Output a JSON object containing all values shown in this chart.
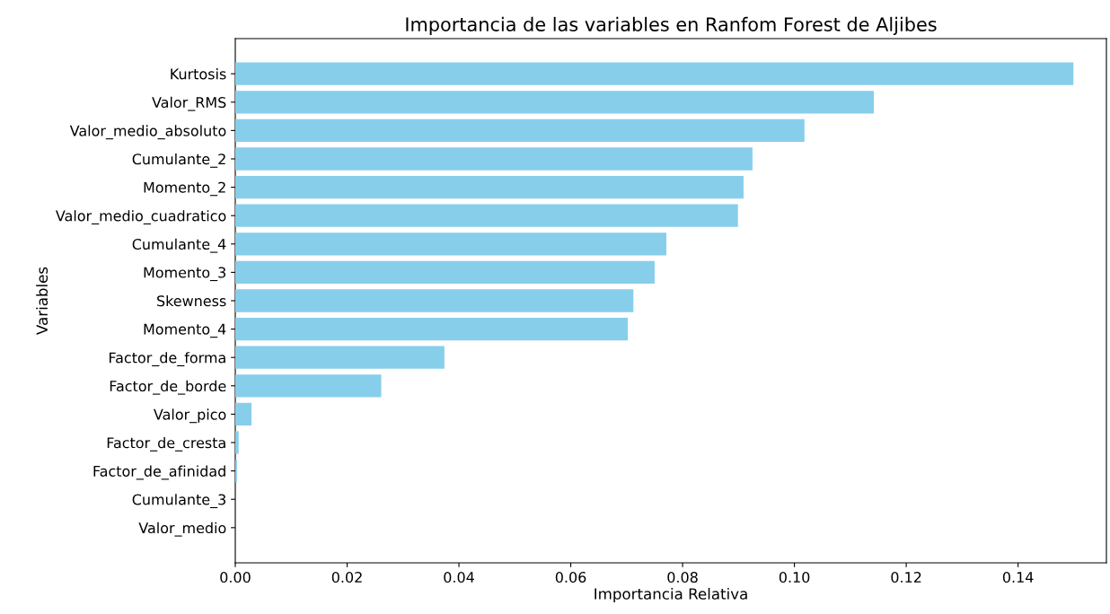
{
  "chart_data": {
    "type": "bar",
    "orientation": "horizontal",
    "title": "Importancia de las variables en Ranfom Forest de Aljibes",
    "xlabel": "Importancia Relativa",
    "ylabel": "Variables",
    "categories": [
      "Kurtosis",
      "Valor_RMS",
      "Valor_medio_absoluto",
      "Cumulante_2",
      "Momento_2",
      "Valor_medio_cuadratico",
      "Cumulante_4",
      "Momento_3",
      "Skewness",
      "Momento_4",
      "Factor_de_forma",
      "Factor_de_borde",
      "Valor_pico",
      "Factor_de_cresta",
      "Factor_de_afinidad",
      "Cumulante_3",
      "Valor_medio"
    ],
    "values": [
      0.1499,
      0.1142,
      0.1018,
      0.0925,
      0.0909,
      0.0899,
      0.0771,
      0.075,
      0.0712,
      0.0702,
      0.0374,
      0.0261,
      0.0029,
      0.0006,
      0.0003,
      0.0,
      0.0
    ],
    "color": "#87ceeb",
    "xlim": [
      0,
      0.1558
    ],
    "xticks": [
      {
        "value": 0,
        "label": "0.00"
      },
      {
        "value": 0.02,
        "label": "0.02"
      },
      {
        "value": 0.04,
        "label": "0.04"
      },
      {
        "value": 0.06,
        "label": "0.06"
      },
      {
        "value": 0.08,
        "label": "0.08"
      },
      {
        "value": 0.1,
        "label": "0.10"
      },
      {
        "value": 0.12,
        "label": "0.12"
      },
      {
        "value": 0.14,
        "label": "0.14"
      }
    ],
    "grid": false
  }
}
